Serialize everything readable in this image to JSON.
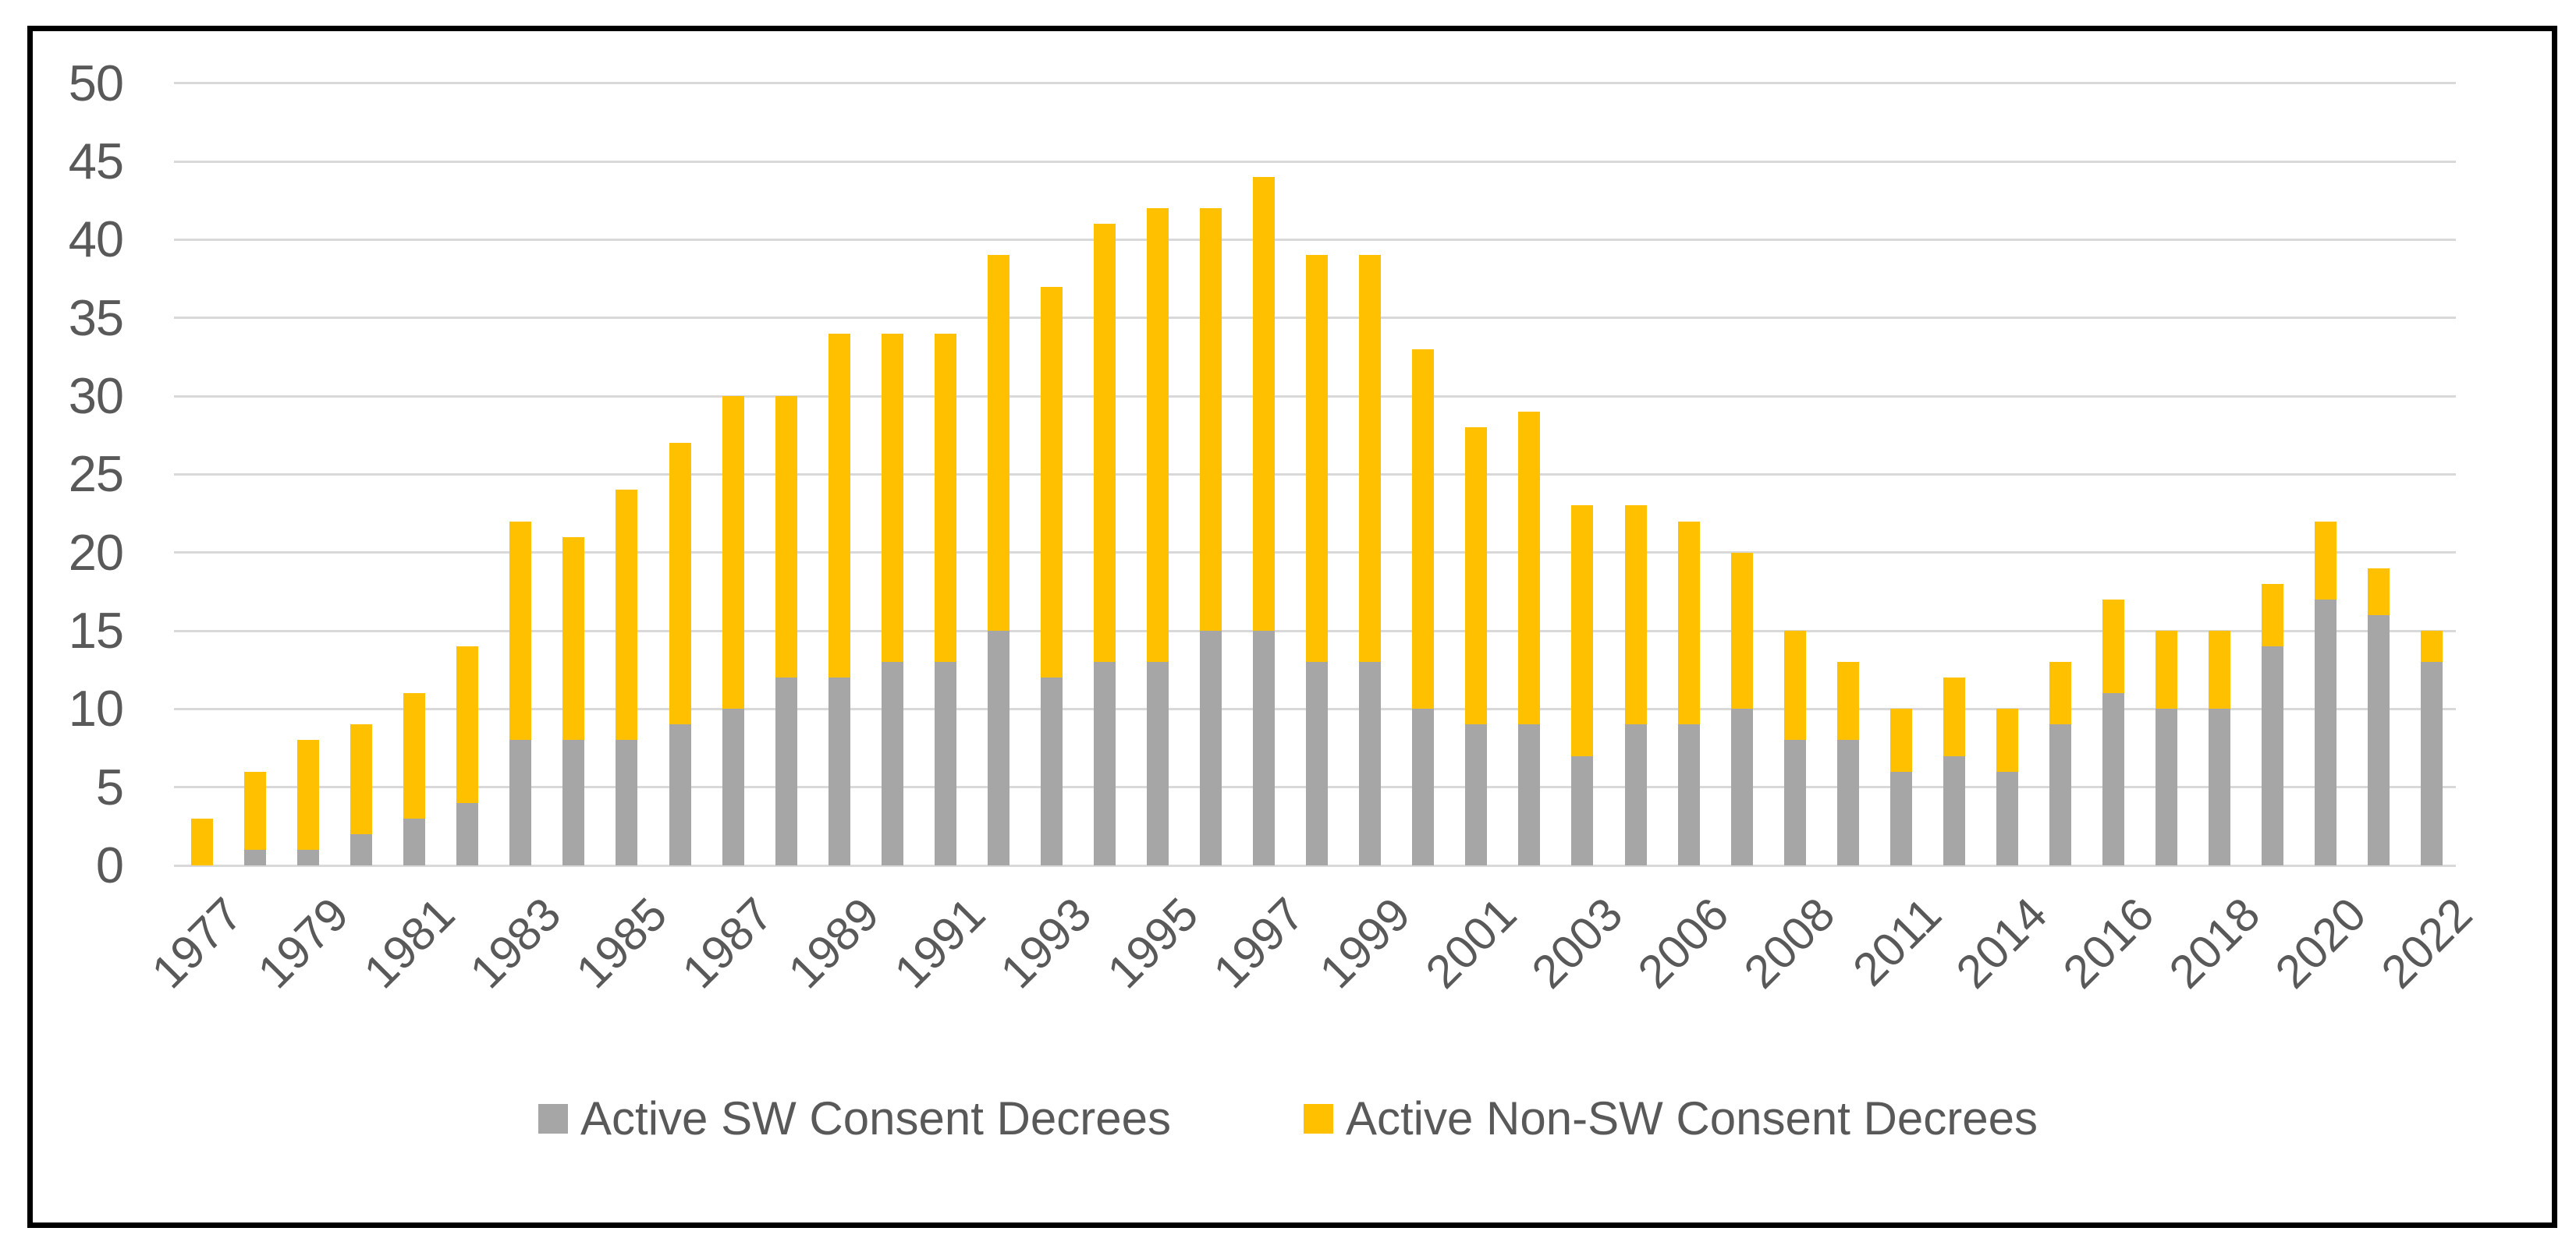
{
  "chart_data": {
    "type": "bar",
    "stacked": true,
    "title": "",
    "categories": [
      "1977",
      "",
      "1979",
      "",
      "1981",
      "",
      "1983",
      "",
      "1985",
      "",
      "1987",
      "",
      "1989",
      "",
      "1991",
      "",
      "1993",
      "",
      "1995",
      "",
      "1997",
      "",
      "1999",
      "",
      "2001",
      "",
      "2003",
      "",
      "2006",
      "",
      "2008",
      "",
      "2011",
      "",
      "2014",
      "",
      "2016",
      "",
      "2018",
      "",
      "2020",
      "",
      "2022"
    ],
    "series": [
      {
        "name": "Active SW Consent Decrees",
        "color": "#A6A6A6",
        "values": [
          0,
          1,
          1,
          2,
          3,
          4,
          8,
          8,
          8,
          9,
          10,
          12,
          12,
          13,
          13,
          15,
          12,
          13,
          13,
          15,
          15,
          13,
          13,
          10,
          9,
          9,
          7,
          9,
          9,
          10,
          8,
          8,
          6,
          7,
          6,
          9,
          11,
          10,
          10,
          14,
          17,
          16,
          13
        ]
      },
      {
        "name": "Active Non-SW Consent Decrees",
        "color": "#FFC000",
        "values": [
          3,
          5,
          7,
          7,
          8,
          10,
          14,
          13,
          16,
          18,
          20,
          18,
          22,
          21,
          21,
          24,
          25,
          28,
          29,
          27,
          29,
          26,
          26,
          23,
          19,
          20,
          16,
          14,
          13,
          10,
          7,
          5,
          4,
          5,
          4,
          4,
          6,
          5,
          5,
          4,
          5,
          3,
          2
        ]
      }
    ],
    "totals": [
      3,
      6,
      8,
      9,
      11,
      14,
      22,
      21,
      24,
      27,
      30,
      30,
      34,
      34,
      34,
      39,
      37,
      41,
      42,
      42,
      44,
      39,
      39,
      33,
      28,
      29,
      23,
      23,
      22,
      20,
      15,
      13,
      10,
      12,
      10,
      13,
      17,
      15,
      15,
      18,
      22,
      19,
      15
    ],
    "ylim": [
      0,
      50
    ],
    "yticks": [
      0,
      5,
      10,
      15,
      20,
      25,
      30,
      35,
      40,
      45,
      50
    ],
    "grid": true,
    "legend_position": "bottom"
  },
  "colors": {
    "background": "#FFFFFF",
    "border": "#000000",
    "gridline": "#D9D9D9",
    "axis_text": "#595959",
    "sw_bar": "#A6A6A6",
    "non_sw_bar": "#FFC000"
  }
}
